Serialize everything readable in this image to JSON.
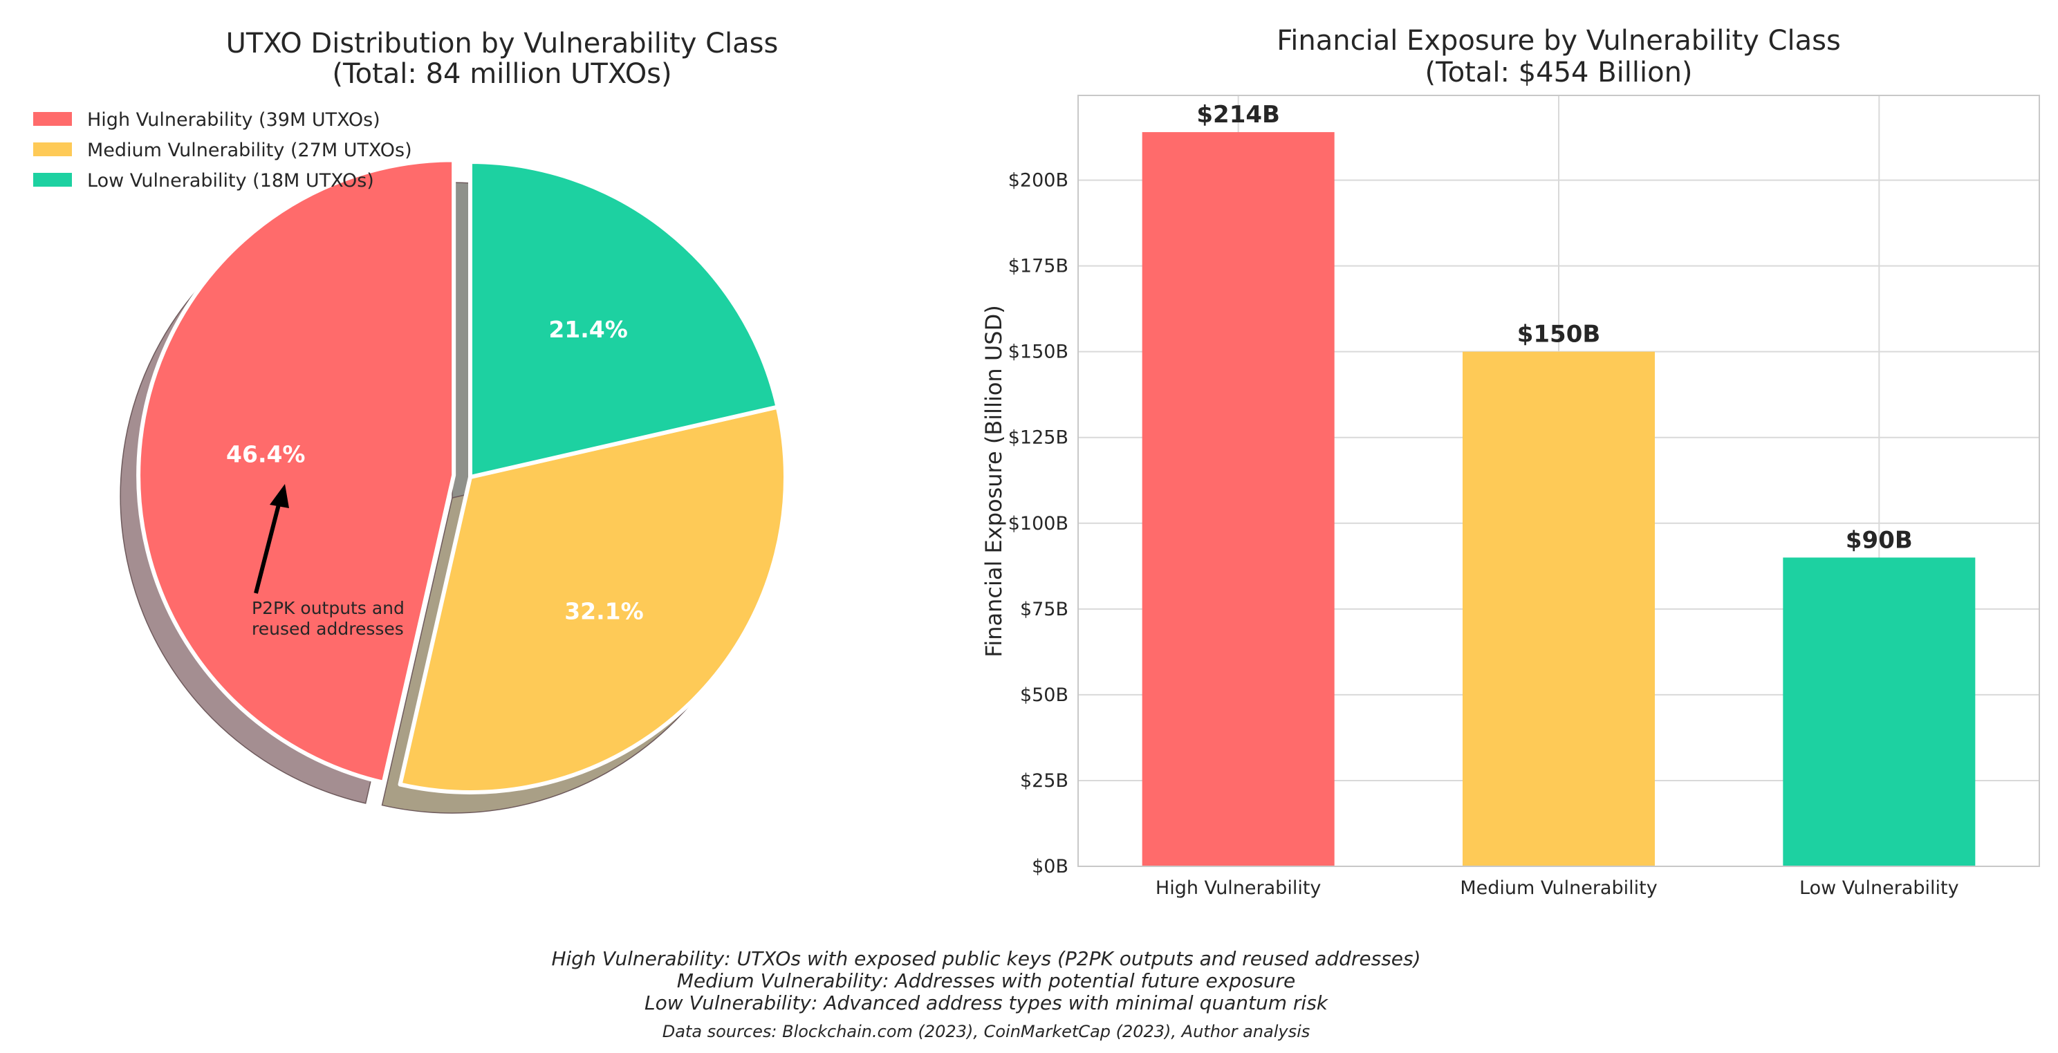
{
  "chart_data": [
    {
      "type": "pie",
      "title": "UTXO Distribution by Vulnerability Class",
      "subtitle": "(Total: 84 million UTXOs)",
      "categories": [
        "High Vulnerability",
        "Medium Vulnerability",
        "Low Vulnerability"
      ],
      "values": [
        39,
        27,
        18
      ],
      "unit": "million UTXOs",
      "percent_labels": [
        "46.4%",
        "32.1%",
        "21.4%"
      ],
      "legend": [
        "High Vulnerability (39M UTXOs)",
        "Medium Vulnerability (27M UTXOs)",
        "Low Vulnerability (18M UTXOs)"
      ],
      "legend_position": "top-left",
      "colors": [
        "#ff6b6b",
        "#feca57",
        "#1dd1a1"
      ],
      "start_angle_deg": 90,
      "counterclock": true,
      "exploded_slice": "High Vulnerability",
      "shadow": true,
      "annotation": {
        "text_lines": [
          "P2PK outputs and",
          "reused addresses"
        ],
        "target": "High Vulnerability",
        "arrow": true
      }
    },
    {
      "type": "bar",
      "title": "Financial Exposure by Vulnerability Class",
      "subtitle": "(Total: $454 Billion)",
      "categories": [
        "High Vulnerability",
        "Medium Vulnerability",
        "Low Vulnerability"
      ],
      "values": [
        214,
        150,
        90
      ],
      "value_labels": [
        "$214B",
        "$150B",
        "$90B"
      ],
      "colors": [
        "#ff6b6b",
        "#feca57",
        "#1dd1a1"
      ],
      "xlabel": "",
      "ylabel": "Financial Exposure (Billion USD)",
      "ylim": [
        0,
        224.7
      ],
      "yticks": [
        0,
        25,
        50,
        75,
        100,
        125,
        150,
        175,
        200
      ],
      "ytick_labels": [
        "$0B",
        "$25B",
        "$50B",
        "$75B",
        "$100B",
        "$125B",
        "$150B",
        "$175B",
        "$200B"
      ],
      "grid": true
    }
  ],
  "footnotes": [
    "High Vulnerability: UTXOs with exposed public keys (P2PK outputs and reused addresses)",
    "Medium Vulnerability: Addresses with potential future exposure",
    "Low Vulnerability: Advanced address types with minimal quantum risk"
  ],
  "sources": "Data sources: Blockchain.com (2023), CoinMarketCap (2023), Author analysis"
}
